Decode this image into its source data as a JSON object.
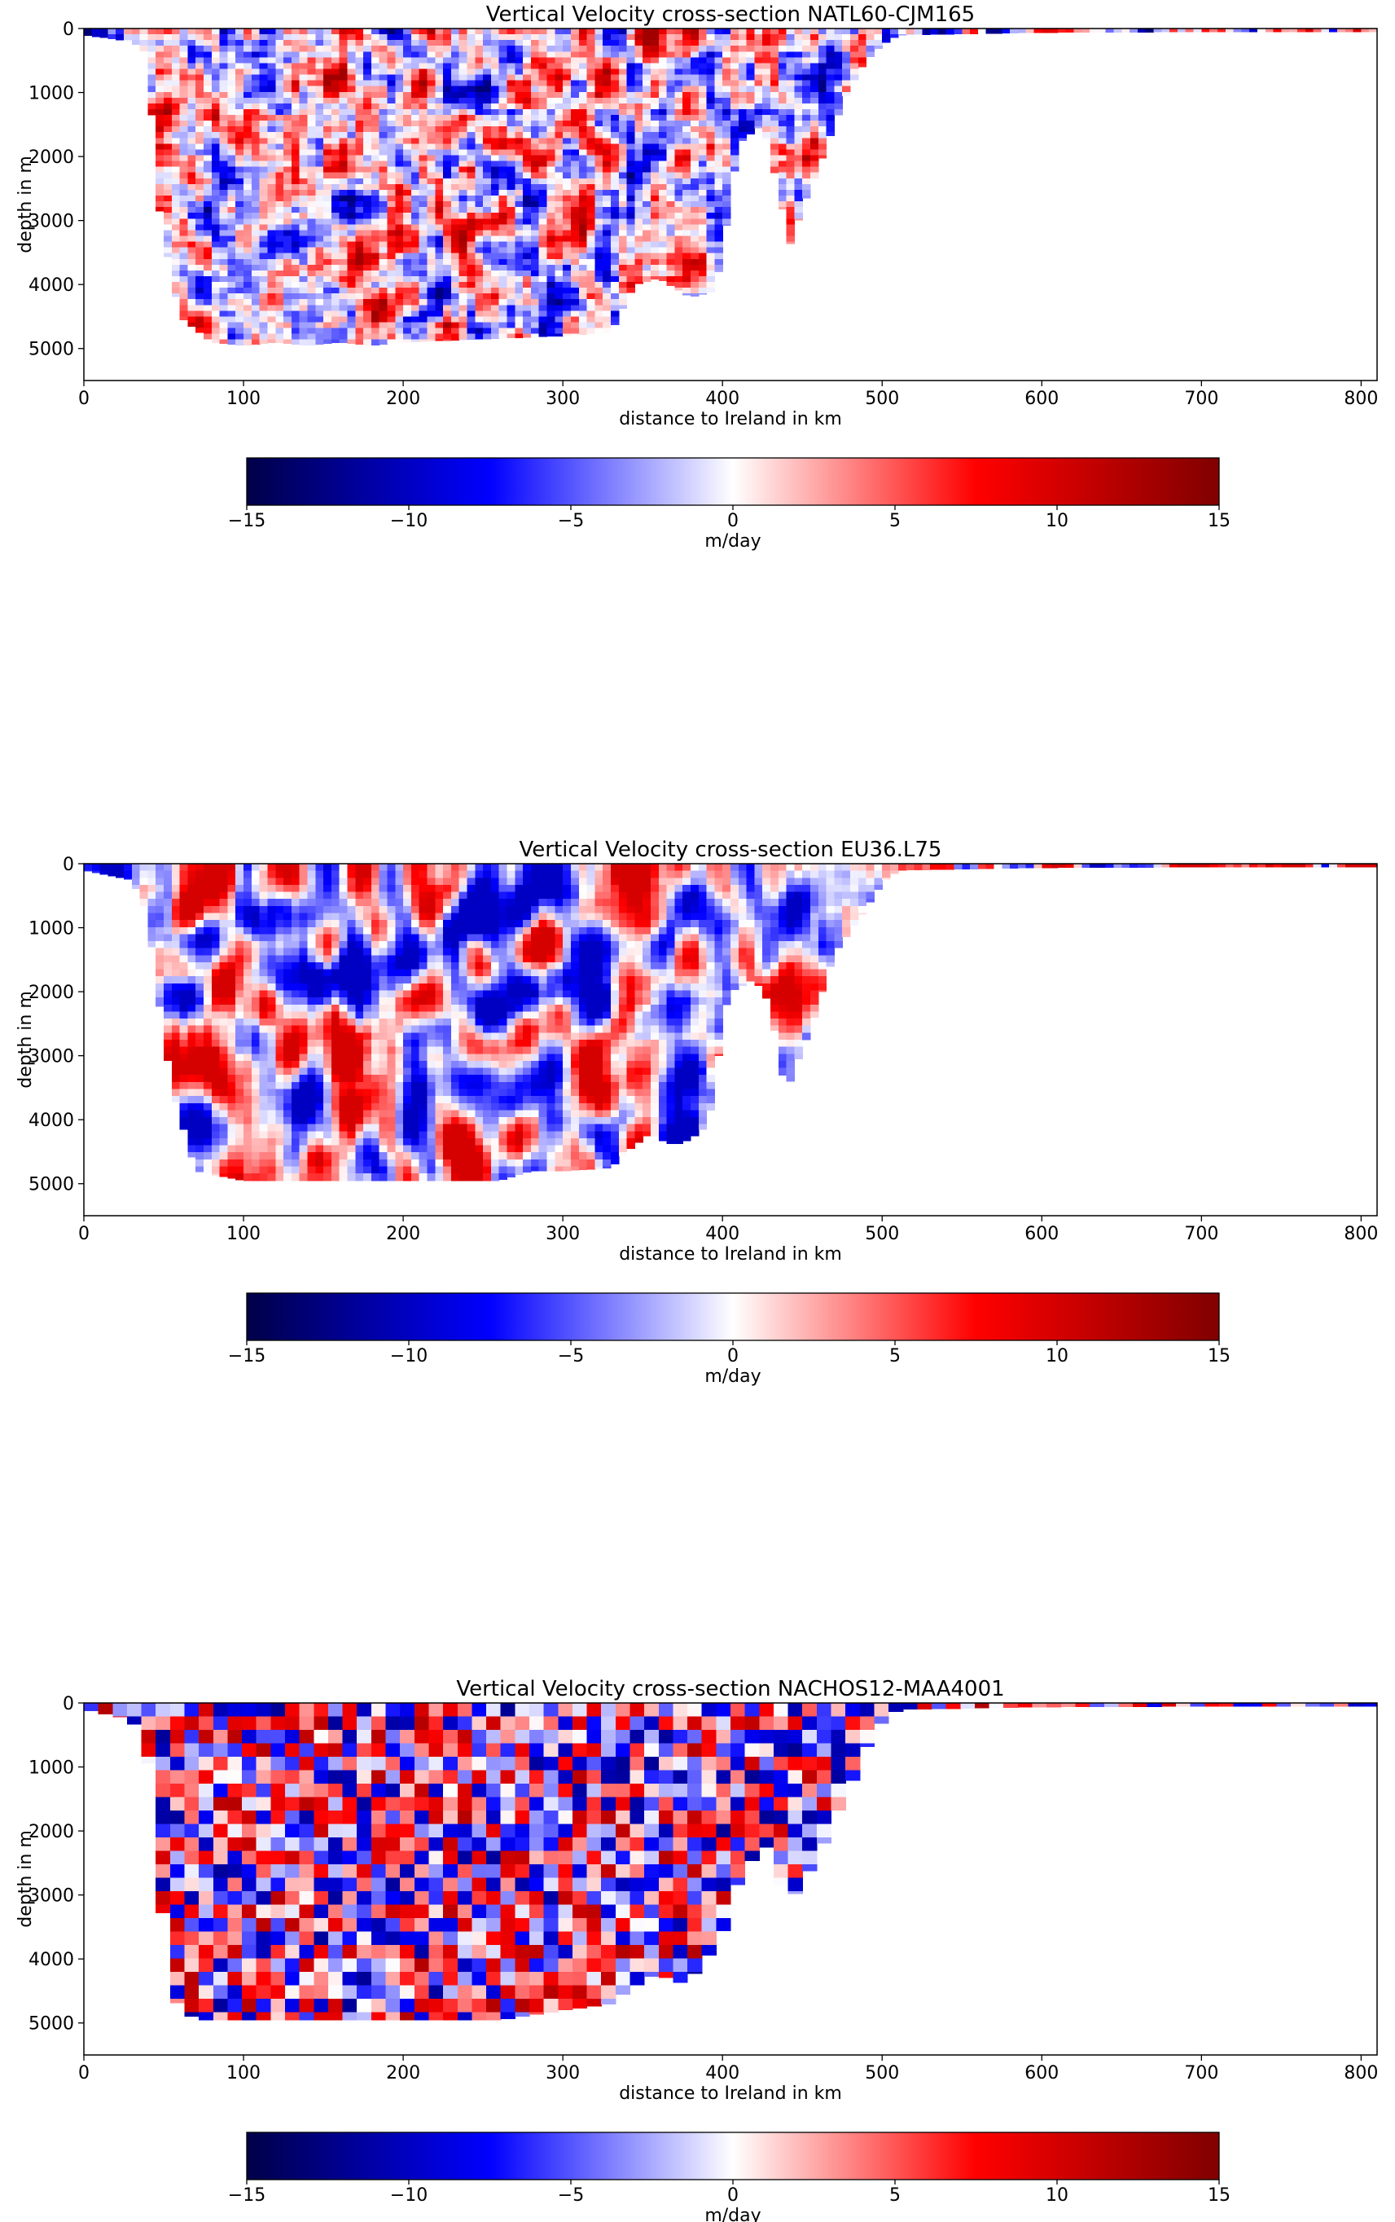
{
  "colorbar": {
    "ticks": [
      -15,
      -10,
      -5,
      0,
      5,
      10,
      15
    ],
    "tick_labels": [
      "−15",
      "−10",
      "−5",
      "0",
      "5",
      "10",
      "15"
    ],
    "label": "m/day",
    "vmin": -15,
    "vmax": 15,
    "colormap": [
      "#000048",
      "#0000ff",
      "#ffffff",
      "#ff0000",
      "#800000"
    ]
  },
  "chart_data": [
    {
      "type": "heatmap",
      "title": "Vertical Velocity cross-section NATL60-CJM165",
      "xlabel": "distance to Ireland in km",
      "ylabel": "depth in m",
      "xlim": [
        0,
        810
      ],
      "ylim": [
        5500,
        0
      ],
      "x_ticks": [
        0,
        100,
        200,
        300,
        400,
        500,
        600,
        700,
        800
      ],
      "y_ticks": [
        0,
        1000,
        2000,
        3000,
        4000,
        5000
      ],
      "cell_km": 5,
      "cell_m": 90,
      "seed": 11,
      "amplitude": 13,
      "smooth_passes": 1,
      "bathymetry": {
        "x": [
          0,
          30,
          40,
          42,
          48,
          60,
          80,
          100,
          120,
          140,
          160,
          180,
          200,
          250,
          300,
          330,
          345,
          360,
          380,
          395,
          400,
          410,
          425,
          435,
          442,
          450,
          460,
          470,
          480,
          490,
          500,
          510,
          600,
          700,
          810
        ],
        "depth": [
          100,
          200,
          400,
          1200,
          3000,
          4500,
          4900,
          4950,
          4900,
          4950,
          4900,
          4950,
          4900,
          4850,
          4800,
          4750,
          4000,
          3900,
          4200,
          4100,
          3500,
          1800,
          1500,
          2500,
          3400,
          2800,
          2200,
          1500,
          900,
          500,
          250,
          100,
          60,
          50,
          50
        ]
      }
    },
    {
      "type": "heatmap",
      "title": "Vertical Velocity cross-section EU36.L75",
      "xlabel": "distance to Ireland in km",
      "ylabel": "depth in m",
      "xlim": [
        0,
        810
      ],
      "ylim": [
        5500,
        0
      ],
      "x_ticks": [
        0,
        100,
        200,
        300,
        400,
        500,
        600,
        700,
        800
      ],
      "y_ticks": [
        0,
        1000,
        2000,
        3000,
        4000,
        5000
      ],
      "cell_km": 5,
      "cell_m": 110,
      "seed": 23,
      "amplitude": 10,
      "smooth_passes": 2,
      "bathymetry": {
        "x": [
          0,
          30,
          40,
          45,
          55,
          70,
          100,
          150,
          200,
          260,
          280,
          300,
          330,
          340,
          355,
          360,
          370,
          380,
          390,
          395,
          400,
          405,
          420,
          430,
          435,
          440,
          445,
          455,
          470,
          490,
          500,
          510,
          600,
          700,
          810
        ],
        "depth": [
          100,
          250,
          800,
          1800,
          3500,
          4800,
          4950,
          4950,
          4950,
          4950,
          4800,
          4800,
          4750,
          4500,
          4200,
          4300,
          4400,
          4300,
          4100,
          3600,
          2400,
          2000,
          1800,
          2200,
          3000,
          3600,
          3200,
          2600,
          1400,
          700,
          300,
          100,
          60,
          50,
          50
        ]
      }
    },
    {
      "type": "heatmap",
      "title": "Vertical Velocity cross-section NACHOS12-MAA4001",
      "xlabel": "distance to Ireland in km",
      "ylabel": "depth in m",
      "xlim": [
        0,
        810
      ],
      "ylim": [
        5500,
        0
      ],
      "x_ticks": [
        0,
        100,
        200,
        300,
        400,
        500,
        600,
        700,
        800
      ],
      "y_ticks": [
        0,
        1000,
        2000,
        3000,
        4000,
        5000
      ],
      "cell_km": 9,
      "cell_m": 210,
      "seed": 37,
      "amplitude": 12,
      "smooth_passes": 0,
      "bathymetry": {
        "x": [
          0,
          30,
          40,
          45,
          55,
          70,
          100,
          200,
          260,
          300,
          330,
          340,
          360,
          370,
          380,
          390,
          400,
          410,
          420,
          430,
          440,
          450,
          460,
          470,
          480,
          490,
          500,
          510,
          600,
          700,
          810
        ],
        "depth": [
          100,
          250,
          800,
          2200,
          4600,
          4950,
          4950,
          4950,
          4950,
          4800,
          4700,
          4500,
          4200,
          4400,
          4300,
          4000,
          3600,
          2800,
          2400,
          2200,
          3200,
          2800,
          2400,
          1800,
          1300,
          700,
          300,
          100,
          60,
          50,
          50
        ]
      }
    }
  ]
}
